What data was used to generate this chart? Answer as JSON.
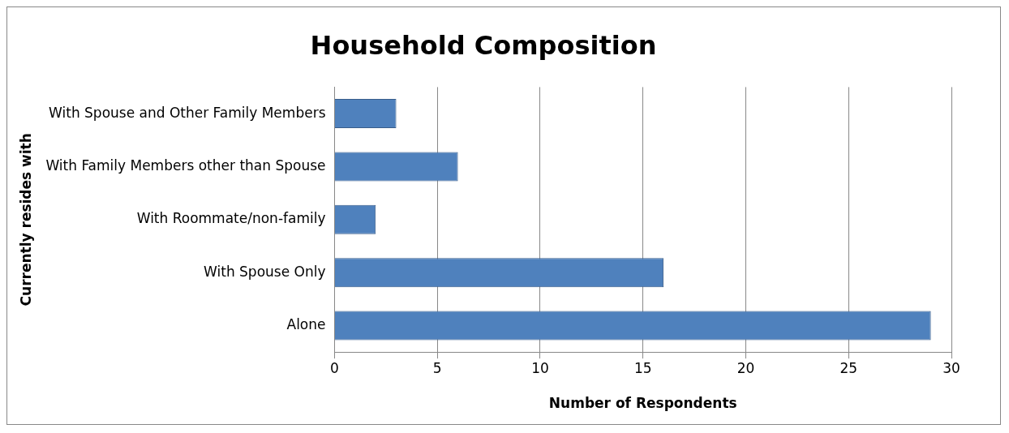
{
  "chart_data": {
    "type": "bar",
    "orientation": "horizontal",
    "title": "Household Composition",
    "xlabel": "Number of Respondents",
    "ylabel": "Currently resides with",
    "categories": [
      "With Spouse and Other Family Members",
      "With Family Members other than Spouse",
      "With Roommate/non-family",
      "With Spouse Only",
      "Alone"
    ],
    "values": [
      3,
      6,
      2,
      16,
      29
    ],
    "color": "#4f81bd",
    "xlim": [
      0,
      30
    ],
    "xticks": [
      0,
      5,
      10,
      15,
      20,
      25,
      30
    ],
    "grid": "x",
    "legend": false
  }
}
